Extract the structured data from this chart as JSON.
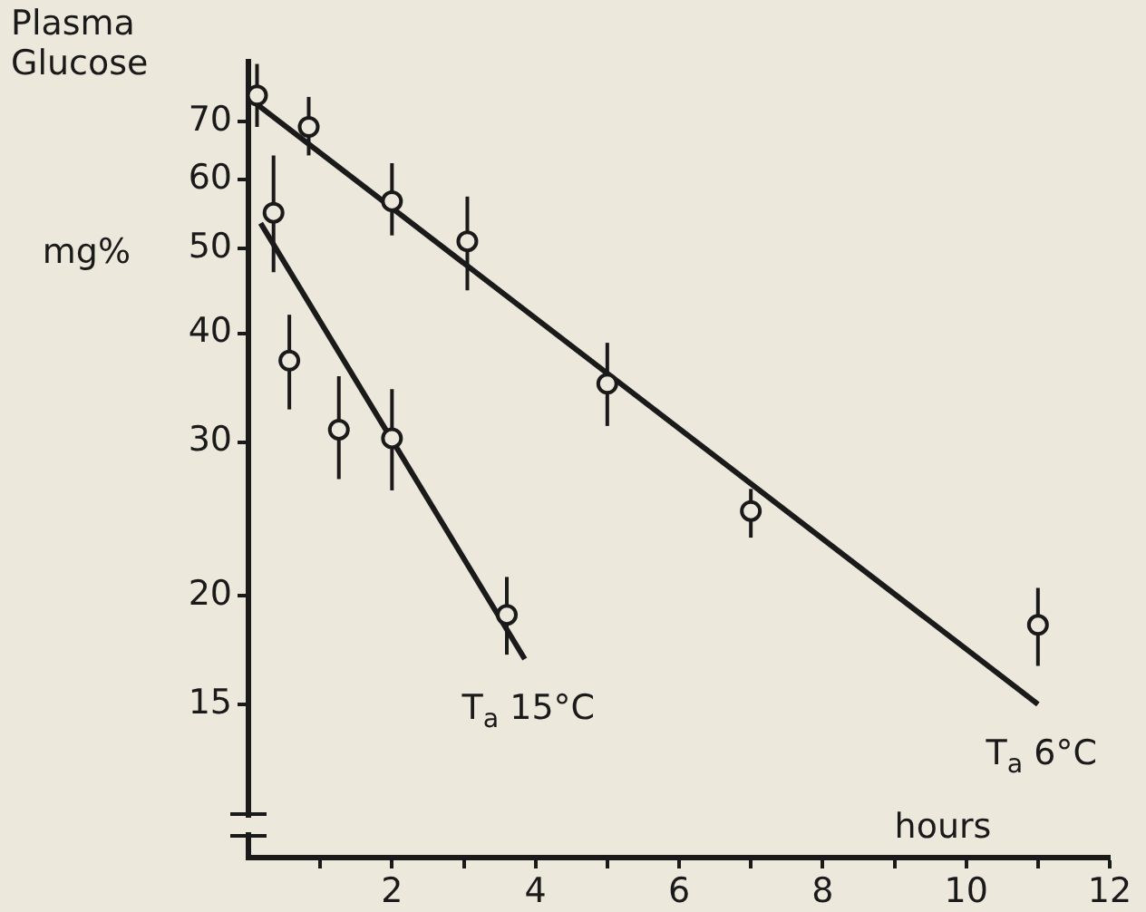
{
  "chart_data": {
    "type": "scatter",
    "xlabel": "hours",
    "ylabel": "Plasma Glucose",
    "annotations": [
      "mg%"
    ],
    "log": "y",
    "grid": false,
    "legend": false,
    "xlim": [
      0,
      12
    ],
    "xticks": [
      {
        "value": 1,
        "label": null
      },
      2,
      {
        "value": 3,
        "label": null
      },
      4,
      {
        "value": 5,
        "label": null
      },
      6,
      {
        "value": 7,
        "label": null
      },
      8,
      {
        "value": 9,
        "label": null
      },
      10,
      {
        "value": 11,
        "label": null
      },
      12
    ],
    "ylim": [
      10,
      82
    ],
    "yticks": [
      15,
      20,
      30,
      40,
      50,
      60,
      70
    ],
    "series": [
      {
        "type": "scatter",
        "marker": "circle",
        "color": "#1a1a1a",
        "x": [
          0.12,
          0.84,
          2.0,
          3.05,
          5.0,
          7.0,
          11.0
        ],
        "values": [
          75,
          69,
          56.7,
          51,
          35,
          25,
          18.5
        ],
        "errors": [
          [
            69,
            81.5
          ],
          [
            64,
            74.7
          ],
          [
            51.8,
            62.7
          ],
          [
            44.8,
            57.4
          ],
          [
            31.3,
            39
          ],
          [
            23.3,
            26.5
          ],
          [
            16.6,
            20.4
          ]
        ]
      },
      {
        "type": "scatter",
        "marker": "circle",
        "color": "#1a1a1a",
        "x": [
          0.35,
          0.57,
          1.26,
          2.0,
          3.6
        ],
        "values": [
          55,
          37.2,
          31,
          30.3,
          19
        ],
        "errors": [
          [
            47,
            64
          ],
          [
            32.7,
            42
          ],
          [
            27.2,
            35.7
          ],
          [
            26.4,
            34.5
          ],
          [
            17.1,
            21
          ]
        ]
      },
      {
        "type": "line",
        "marker": "none",
        "name": "T$_{a}$ 6°C",
        "color": "#1a1a1a",
        "x": [
          0.05,
          11.0
        ],
        "values": [
          74,
          15
        ]
      },
      {
        "type": "line",
        "marker": "none",
        "name": "T$_{a}$ 15°C",
        "color": "#1a1a1a",
        "x": [
          0.17,
          3.85
        ],
        "values": [
          53.5,
          16.9
        ]
      }
    ]
  }
}
